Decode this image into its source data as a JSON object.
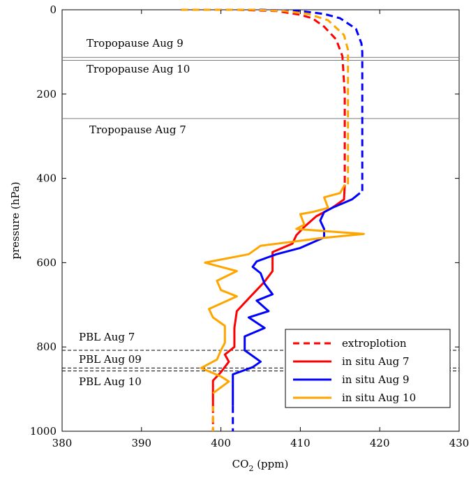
{
  "chart_data": {
    "type": "line",
    "xlabel_main": "CO",
    "xlabel_sub": "2",
    "xlabel_unit": " (ppm)",
    "ylabel": "pressure (hPa)",
    "xlim": [
      380,
      430
    ],
    "ylim": [
      0,
      1000
    ],
    "y_reversed": true,
    "xticks": [
      "380",
      "390",
      "400",
      "410",
      "420",
      "430"
    ],
    "yticks": [
      "0",
      "200",
      "400",
      "600",
      "800",
      "1000"
    ],
    "xtick_values": [
      380,
      390,
      400,
      410,
      420,
      430
    ],
    "ytick_values": [
      0,
      200,
      400,
      600,
      800,
      1000
    ],
    "legend": {
      "position": "lower-right",
      "entries": [
        {
          "label": "extroplotion",
          "style": "dashed",
          "color": "#ff0000"
        },
        {
          "label": "in situ Aug 7",
          "style": "solid",
          "color": "#ff0000"
        },
        {
          "label": "in situ Aug 9",
          "style": "solid",
          "color": "#0000ff"
        },
        {
          "label": "in situ Aug 10",
          "style": "solid",
          "color": "#ffa500"
        }
      ]
    },
    "reference_lines": [
      {
        "label": "Tropopause Aug 9",
        "pressure": 113,
        "style": "solid"
      },
      {
        "label": "Tropopause Aug 10",
        "pressure": 120,
        "style": "solid"
      },
      {
        "label": "Tropopause Aug 7",
        "pressure": 258,
        "style": "solid"
      },
      {
        "label": "PBL Aug 7",
        "pressure": 808,
        "style": "dashed"
      },
      {
        "label": "PBL Aug 09",
        "pressure": 850,
        "style": "dashed"
      },
      {
        "label": "PBL Aug 10",
        "pressure": 857,
        "style": "dashed"
      }
    ],
    "series": [
      {
        "style": "dashed",
        "color": "#ff0000",
        "points": [
          [
            395,
            0
          ],
          [
            402,
            0
          ],
          [
            407,
            3
          ],
          [
            410,
            12
          ],
          [
            411.5,
            20
          ],
          [
            413,
            40
          ],
          [
            414.5,
            70
          ],
          [
            415.3,
            110
          ],
          [
            415.6,
            200
          ],
          [
            415.6,
            300
          ],
          [
            415.6,
            415
          ]
        ]
      },
      {
        "style": "dashed",
        "color": "#0000ff",
        "points": [
          [
            395,
            0
          ],
          [
            405,
            0
          ],
          [
            410,
            3
          ],
          [
            413,
            10
          ],
          [
            415,
            20
          ],
          [
            417,
            45
          ],
          [
            417.7,
            80
          ],
          [
            417.8,
            100
          ],
          [
            417.8,
            430
          ]
        ]
      },
      {
        "style": "dashed",
        "color": "#ffa500",
        "points": [
          [
            395,
            0
          ],
          [
            404,
            0
          ],
          [
            408,
            3
          ],
          [
            411,
            10
          ],
          [
            413.5,
            25
          ],
          [
            415.5,
            60
          ],
          [
            416,
            95
          ],
          [
            416,
            420
          ]
        ]
      },
      {
        "style": "dashed",
        "color": "#ff0000",
        "points": [
          [
            399,
            940
          ],
          [
            399,
            1000
          ]
        ]
      },
      {
        "style": "dashed",
        "color": "#0000ff",
        "points": [
          [
            401.5,
            940
          ],
          [
            401.5,
            1000
          ]
        ]
      },
      {
        "style": "dashed",
        "color": "#ffa500",
        "points": [
          [
            399,
            910
          ],
          [
            399,
            1000
          ]
        ]
      },
      {
        "style": "solid",
        "color": "#ff0000",
        "points": [
          [
            415.6,
            415
          ],
          [
            415.5,
            450
          ],
          [
            414,
            470
          ],
          [
            412,
            490
          ],
          [
            410.5,
            515
          ],
          [
            409.5,
            535
          ],
          [
            409,
            555
          ],
          [
            406.5,
            575
          ],
          [
            406.5,
            600
          ],
          [
            406.5,
            620
          ],
          [
            405.5,
            645
          ],
          [
            404.5,
            665
          ],
          [
            403.5,
            685
          ],
          [
            402,
            715
          ],
          [
            401.7,
            755
          ],
          [
            401.7,
            800
          ],
          [
            400.5,
            818
          ],
          [
            401,
            835
          ],
          [
            400,
            860
          ],
          [
            399,
            880
          ],
          [
            399,
            940
          ]
        ]
      },
      {
        "style": "solid",
        "color": "#0000ff",
        "points": [
          [
            417.5,
            435
          ],
          [
            416.5,
            450
          ],
          [
            414,
            470
          ],
          [
            413,
            480
          ],
          [
            412.5,
            500
          ],
          [
            413,
            520
          ],
          [
            413,
            540
          ],
          [
            410,
            565
          ],
          [
            407,
            580
          ],
          [
            404.5,
            597
          ],
          [
            404,
            610
          ],
          [
            405,
            625
          ],
          [
            405.5,
            650
          ],
          [
            406.5,
            675
          ],
          [
            404.5,
            690
          ],
          [
            406,
            715
          ],
          [
            403.5,
            730
          ],
          [
            405.5,
            755
          ],
          [
            403,
            775
          ],
          [
            403,
            808
          ],
          [
            405,
            835
          ],
          [
            404,
            848
          ],
          [
            401.5,
            865
          ],
          [
            401.5,
            940
          ]
        ]
      },
      {
        "style": "solid",
        "color": "#ffa500",
        "points": [
          [
            415.6,
            415
          ],
          [
            415,
            435
          ],
          [
            413,
            445
          ],
          [
            413.5,
            470
          ],
          [
            411.5,
            480
          ],
          [
            410,
            485
          ],
          [
            410.5,
            510
          ],
          [
            409.5,
            520
          ],
          [
            413,
            525
          ],
          [
            418,
            532
          ],
          [
            412.5,
            542
          ],
          [
            405,
            560
          ],
          [
            403.5,
            580
          ],
          [
            398,
            600
          ],
          [
            402,
            620
          ],
          [
            399.5,
            643
          ],
          [
            400,
            665
          ],
          [
            402,
            680
          ],
          [
            398.5,
            710
          ],
          [
            399,
            730
          ],
          [
            400.5,
            750
          ],
          [
            400.5,
            790
          ],
          [
            400,
            808
          ],
          [
            399.5,
            830
          ],
          [
            397.5,
            850
          ],
          [
            400,
            870
          ],
          [
            401,
            882
          ],
          [
            399,
            910
          ]
        ]
      }
    ]
  },
  "annotations": {
    "trop_aug9": "Tropopause Aug 9",
    "trop_aug10": "Tropopause Aug 10",
    "trop_aug7": "Tropopause Aug 7",
    "pbl_aug7": "PBL Aug 7",
    "pbl_aug09": "PBL Aug 09",
    "pbl_aug10": "PBL Aug 10"
  }
}
